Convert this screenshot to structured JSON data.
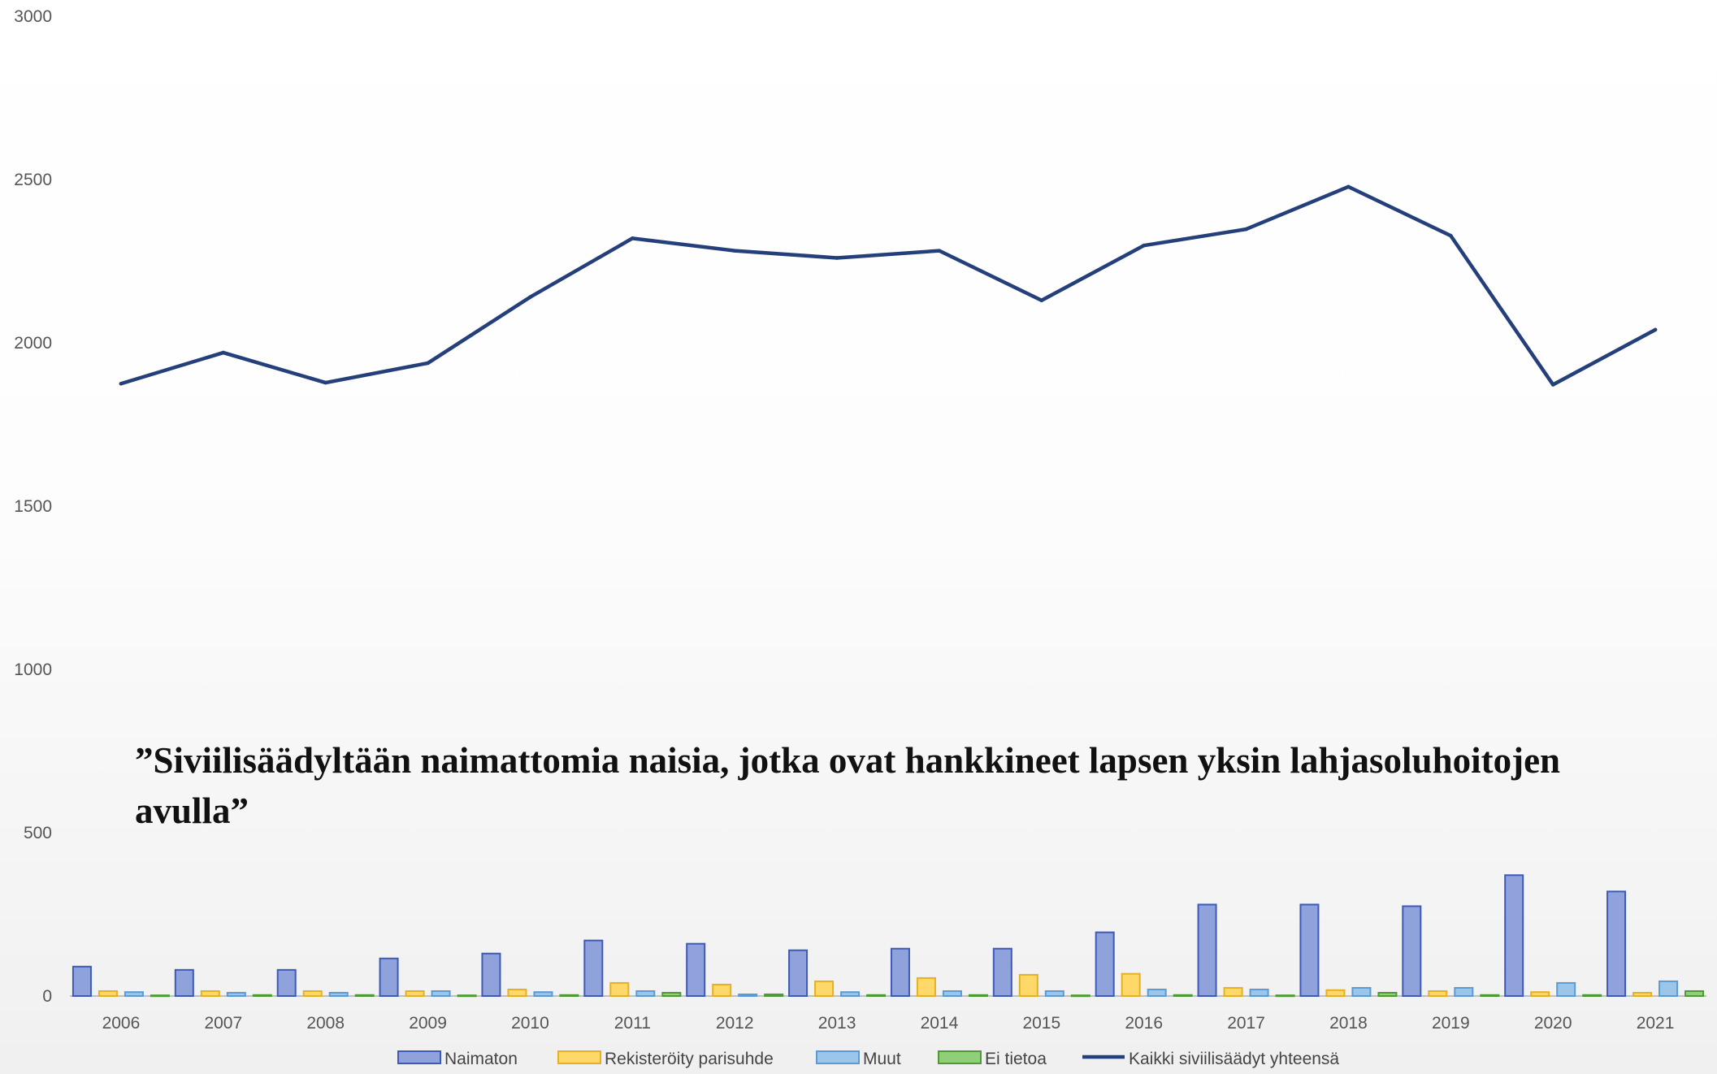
{
  "chart_data": {
    "type": "bar",
    "categories": [
      "2006",
      "2007",
      "2008",
      "2009",
      "2010",
      "2011",
      "2012",
      "2013",
      "2014",
      "2015",
      "2016",
      "2017",
      "2018",
      "2019",
      "2020",
      "2021"
    ],
    "y_ticks": [
      "0",
      "500",
      "1000",
      "1500",
      "2000",
      "2500",
      "3000"
    ],
    "ylim": [
      0,
      3000
    ],
    "grid": false,
    "legend_position": "bottom",
    "annotation": "”Siviilisäädyltään naimattomia naisia, jotka ovat hankkineet lapsen yksin lahjasoluhoitojen avulla”",
    "series": [
      {
        "name": "Naimaton",
        "kind": "bar",
        "color": "#8fa2dc",
        "stroke": "#3d5ab8",
        "values": [
          90,
          80,
          80,
          115,
          130,
          170,
          160,
          140,
          145,
          145,
          195,
          280,
          280,
          275,
          370,
          320
        ]
      },
      {
        "name": "Rekisteröity parisuhde",
        "kind": "bar",
        "color": "#ffd86a",
        "stroke": "#e6b020",
        "values": [
          15,
          15,
          15,
          15,
          20,
          40,
          35,
          45,
          55,
          65,
          68,
          25,
          18,
          15,
          12,
          10
        ]
      },
      {
        "name": "Muut",
        "kind": "bar",
        "color": "#9cc5ea",
        "stroke": "#5b9bd5",
        "values": [
          12,
          10,
          10,
          15,
          12,
          15,
          5,
          12,
          15,
          15,
          20,
          20,
          25,
          25,
          40,
          45
        ]
      },
      {
        "name": "Ei tietoa",
        "kind": "bar",
        "color": "#8fcf78",
        "stroke": "#4e9a34",
        "values": [
          2,
          3,
          3,
          2,
          3,
          10,
          5,
          3,
          3,
          2,
          3,
          2,
          10,
          3,
          3,
          15
        ]
      },
      {
        "name": "Kaikki siviilisäädyt yhteensä",
        "kind": "line",
        "color": "#243f7a",
        "values": [
          1875,
          1970,
          1878,
          1938,
          2140,
          2320,
          2282,
          2260,
          2282,
          2130,
          2298,
          2348,
          2478,
          2328,
          1872,
          2040
        ]
      }
    ]
  }
}
